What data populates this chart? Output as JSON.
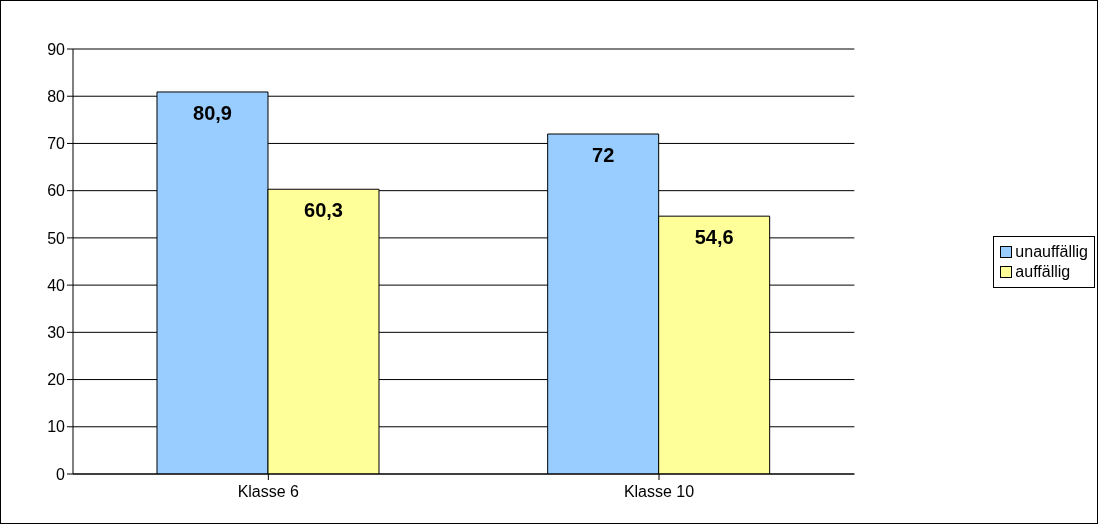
{
  "chart_data": {
    "type": "bar",
    "categories": [
      "Klasse 6",
      "Klasse 10"
    ],
    "series": [
      {
        "name": "unauffällig",
        "color": "#99ccff",
        "values": [
          80.9,
          72
        ],
        "value_labels": [
          "80,9",
          "72"
        ]
      },
      {
        "name": "auffällig",
        "color": "#ffff99",
        "values": [
          60.3,
          54.6
        ],
        "value_labels": [
          "60,3",
          "54,6"
        ]
      }
    ],
    "ylim": [
      0,
      90
    ],
    "yticks": [
      0,
      10,
      20,
      30,
      40,
      50,
      60,
      70,
      80,
      90
    ],
    "grid": "y",
    "legend": "right"
  }
}
